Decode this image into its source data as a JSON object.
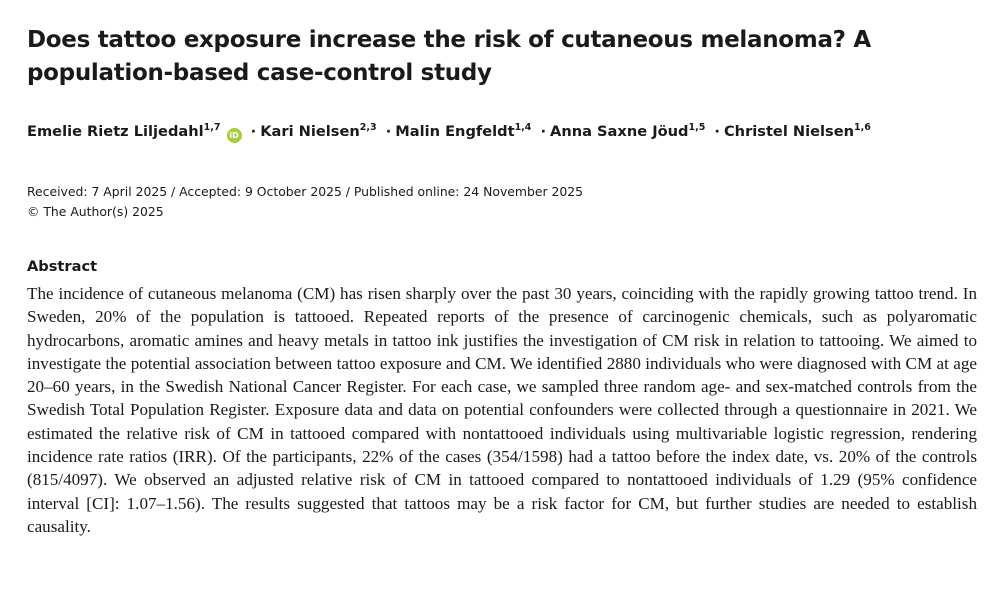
{
  "article": {
    "title": "Does tattoo exposure increase the risk of cutaneous melanoma? A population-based case-control study",
    "authors": [
      {
        "name": "Emelie Rietz Liljedahl",
        "affil": "1,7",
        "orcid": true
      },
      {
        "name": "Kari Nielsen",
        "affil": "2,3",
        "orcid": false
      },
      {
        "name": "Malin Engfeldt",
        "affil": "1,4",
        "orcid": false
      },
      {
        "name": "Anna Saxne Jöud",
        "affil": "1,5",
        "orcid": false
      },
      {
        "name": "Christel Nielsen",
        "affil": "1,6",
        "orcid": false
      }
    ],
    "author_separator": "·",
    "orcid_label": "iD",
    "dates_line": "Received: 7 April 2025 / Accepted: 9 October 2025 / Published online: 24 November 2025",
    "copyright": "© The Author(s) 2025",
    "abstract_heading": "Abstract",
    "abstract_text": "The incidence of cutaneous melanoma (CM) has risen sharply over the past 30 years, coinciding with the rapidly growing tattoo trend. In Sweden, 20% of the population is tattooed. Repeated reports of the presence of carcinogenic chemicals, such as polyaromatic hydrocarbons, aromatic amines and heavy metals in tattoo ink justifies the investigation of CM risk in relation to tattooing. We aimed to investigate the potential association between tattoo exposure and CM. We identified 2880 individuals who were diagnosed with CM at age 20–60 years, in the Swedish National Cancer Register. For each case, we sampled three random age- and sex-matched controls from the Swedish Total Population Register. Exposure data and data on potential confounders were collected through a questionnaire in 2021. We estimated the relative risk of CM in tattooed compared with nontattooed individuals using multivariable logistic regression, rendering incidence rate ratios (IRR). Of the participants, 22% of the cases (354/1598) had a tattoo before the index date, vs. 20% of the controls (815/4097). We observed an adjusted relative risk of CM in tattooed compared to nontattooed individuals of 1.29 (95% confidence interval [CI]: 1.07–1.56). The results suggested that tattoos may be a risk factor for CM, but further studies are needed to establish causality."
  },
  "colors": {
    "text": "#1a1a1a",
    "orcid": "#a6ce39",
    "background": "#ffffff"
  }
}
